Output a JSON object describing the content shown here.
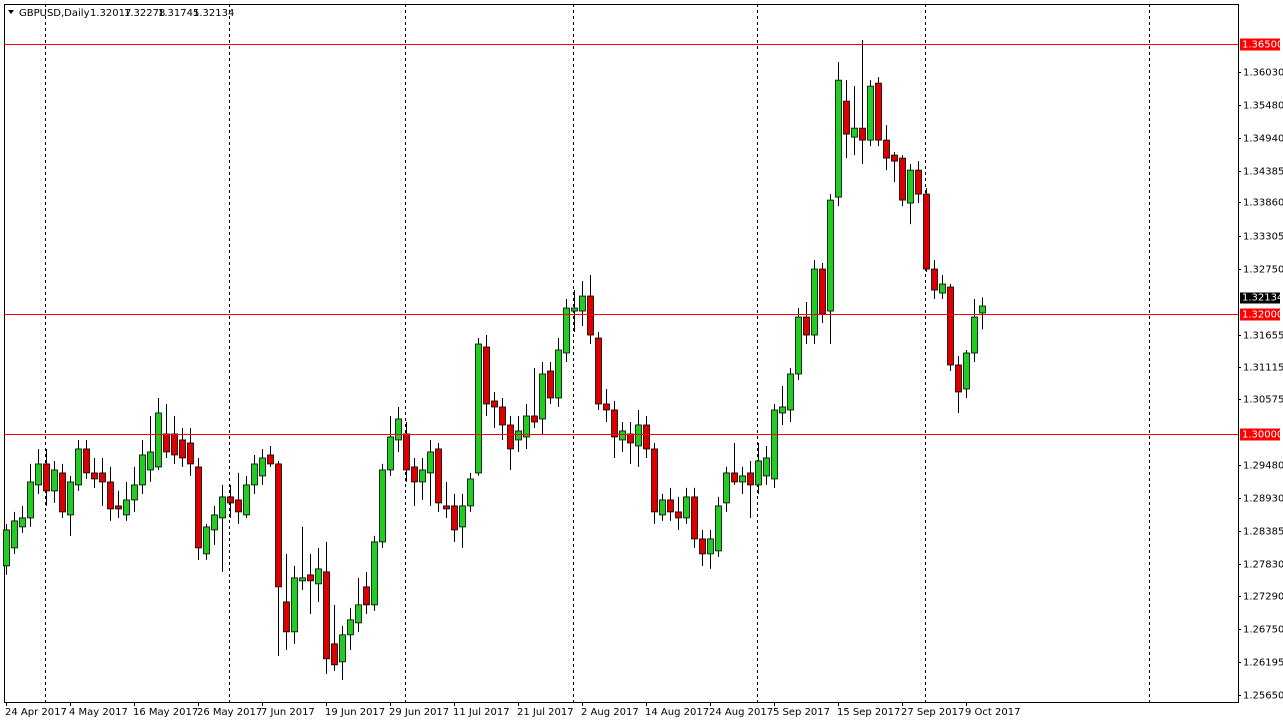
{
  "chart_data": {
    "type": "candlestick",
    "title": "GBPUSD,Daily",
    "categories": [
      "24 Apr 2017",
      null,
      null,
      null,
      null,
      null,
      null,
      null,
      "4 May 2017",
      null,
      null,
      null,
      null,
      null,
      null,
      null,
      "16 May 2017",
      null,
      null,
      null,
      null,
      null,
      null,
      null,
      "26 May 2017",
      null,
      null,
      null,
      null,
      null,
      null,
      null,
      "7 Jun 2017",
      null,
      null,
      null,
      null,
      null,
      null,
      null,
      "19 Jun 2017",
      null,
      null,
      null,
      null,
      null,
      null,
      null,
      "29 Jun 2017",
      null,
      null,
      null,
      null,
      null,
      null,
      null,
      "11 Jul 2017",
      null,
      null,
      null,
      null,
      null,
      null,
      null,
      "21 Jul 2017",
      null,
      null,
      null,
      null,
      null,
      null,
      null,
      "2 Aug 2017",
      null,
      null,
      null,
      null,
      null,
      null,
      null,
      "14 Aug 2017",
      null,
      null,
      null,
      null,
      null,
      null,
      null,
      "24 Aug 2017",
      null,
      null,
      null,
      null,
      null,
      null,
      null,
      "5 Sep 2017",
      null,
      null,
      null,
      null,
      null,
      null,
      null,
      "15 Sep 2017",
      null,
      null,
      null,
      null,
      null,
      null,
      null,
      "27 Sep 2017",
      null,
      null,
      null,
      null,
      null,
      null,
      null,
      "9 Oct 2017",
      null,
      null
    ],
    "open": [
      1.278,
      1.281,
      1.2845,
      1.286,
      1.2915,
      1.295,
      1.2905,
      1.2935,
      1.2865,
      1.2915,
      1.2975,
      1.2935,
      1.2935,
      1.292,
      1.288,
      1.2865,
      1.289,
      1.2915,
      1.294,
      1.2945,
      1.3,
      1.3,
      1.299,
      1.2985,
      1.2945,
      1.28,
      1.284,
      1.286,
      1.2895,
      1.289,
      1.2865,
      1.2915,
      1.293,
      1.2965,
      1.295,
      1.272,
      1.267,
      1.2755,
      1.2765,
      1.275,
      1.277,
      1.265,
      1.262,
      1.2665,
      1.2685,
      1.2745,
      1.2715,
      1.282,
      1.294,
      1.299,
      1.3,
      1.2945,
      1.292,
      1.2935,
      1.2975,
      1.288,
      1.288,
      1.2845,
      1.288,
      1.2935,
      1.3145,
      1.3055,
      1.3045,
      1.3015,
      1.299,
      1.2995,
      1.303,
      1.3025,
      1.3105,
      1.306,
      1.3135,
      1.3205,
      1.3205,
      1.323,
      1.316,
      1.305,
      1.304,
      1.299,
      1.3,
      1.298,
      1.3015,
      1.2975,
      1.2865,
      1.289,
      1.287,
      1.286,
      1.2895,
      1.2825,
      1.28,
      1.2805,
      1.2885,
      1.2935,
      1.292,
      1.2935,
      1.2915,
      1.293,
      1.2925,
      1.3035,
      1.304,
      1.31,
      1.3195,
      1.3165,
      1.3275,
      1.3205,
      1.3395,
      1.3555,
      1.3495,
      1.351,
      1.349,
      1.3585,
      1.349,
      1.3465,
      1.346,
      1.3385,
      1.344,
      1.34,
      1.3275,
      1.3235,
      1.3245,
      1.3115,
      1.3075,
      1.3135,
      1.32017
    ],
    "high": [
      1.285,
      1.287,
      1.288,
      1.295,
      1.2975,
      1.2975,
      1.2955,
      1.295,
      1.293,
      1.299,
      1.299,
      1.296,
      1.296,
      1.2945,
      1.2905,
      1.292,
      1.2945,
      1.299,
      1.303,
      1.306,
      1.305,
      1.303,
      1.301,
      1.301,
      1.296,
      1.285,
      1.288,
      1.2915,
      1.2915,
      1.2935,
      1.293,
      1.2965,
      1.2975,
      1.298,
      1.2955,
      1.28,
      1.278,
      1.2845,
      1.28,
      1.281,
      1.282,
      1.2715,
      1.268,
      1.271,
      1.276,
      1.277,
      1.283,
      1.295,
      1.303,
      1.3045,
      1.302,
      1.296,
      1.296,
      1.299,
      1.2985,
      1.292,
      1.29,
      1.29,
      1.2935,
      1.316,
      1.3165,
      1.307,
      1.306,
      1.303,
      1.303,
      1.305,
      1.311,
      1.312,
      1.312,
      1.316,
      1.3225,
      1.324,
      1.3255,
      1.3265,
      1.317,
      1.3075,
      1.3055,
      1.302,
      1.302,
      1.304,
      1.303,
      1.2985,
      1.29,
      1.291,
      1.2895,
      1.291,
      1.291,
      1.284,
      1.284,
      1.2895,
      1.2945,
      1.2985,
      1.2945,
      1.2955,
      1.2985,
      1.298,
      1.305,
      1.308,
      1.311,
      1.321,
      1.322,
      1.329,
      1.3285,
      1.34,
      1.362,
      1.359,
      1.358,
      1.3657,
      1.359,
      1.3595,
      1.3515,
      1.347,
      1.3465,
      1.345,
      1.3455,
      1.341,
      1.329,
      1.3265,
      1.325,
      1.313,
      1.314,
      1.3225,
      1.32278
    ],
    "low": [
      1.2765,
      1.28,
      1.2835,
      1.2845,
      1.29,
      1.288,
      1.2885,
      1.286,
      1.283,
      1.2905,
      1.2925,
      1.291,
      1.288,
      1.2855,
      1.286,
      1.2855,
      1.287,
      1.29,
      1.292,
      1.294,
      1.296,
      1.295,
      1.2945,
      1.293,
      1.279,
      1.279,
      1.2815,
      1.277,
      1.286,
      1.285,
      1.286,
      1.29,
      1.2915,
      1.2945,
      1.263,
      1.264,
      1.265,
      1.274,
      1.27,
      1.272,
      1.26,
      1.2605,
      1.259,
      1.264,
      1.267,
      1.27,
      1.2705,
      1.281,
      1.293,
      1.297,
      1.292,
      1.288,
      1.289,
      1.288,
      1.287,
      1.286,
      1.282,
      1.281,
      1.287,
      1.293,
      1.303,
      1.301,
      1.299,
      1.294,
      1.297,
      1.2975,
      1.301,
      1.3,
      1.305,
      1.3045,
      1.312,
      1.317,
      1.318,
      1.315,
      1.304,
      1.302,
      1.296,
      1.297,
      1.295,
      1.2945,
      1.296,
      1.285,
      1.2855,
      1.2855,
      1.284,
      1.285,
      1.281,
      1.278,
      1.2775,
      1.2795,
      1.287,
      1.2915,
      1.29,
      1.286,
      1.29,
      1.2915,
      1.291,
      1.3015,
      1.302,
      1.309,
      1.315,
      1.315,
      1.3185,
      1.315,
      1.338,
      1.346,
      1.3465,
      1.345,
      1.348,
      1.348,
      1.344,
      1.342,
      1.338,
      1.335,
      1.3385,
      1.327,
      1.3225,
      1.3225,
      1.3105,
      1.3035,
      1.306,
      1.312,
      1.31745
    ],
    "close": [
      1.284,
      1.2855,
      1.286,
      1.292,
      1.295,
      1.2905,
      1.294,
      1.287,
      1.292,
      1.2975,
      1.2935,
      1.2925,
      1.292,
      1.2875,
      1.2875,
      1.289,
      1.2915,
      1.2965,
      1.297,
      1.3035,
      1.297,
      1.2965,
      1.296,
      1.295,
      1.281,
      1.2845,
      1.2865,
      1.2895,
      1.2885,
      1.287,
      1.2915,
      1.295,
      1.296,
      1.295,
      1.2745,
      1.267,
      1.276,
      1.276,
      1.2755,
      1.2775,
      1.2625,
      1.2615,
      1.2665,
      1.269,
      1.2715,
      1.2715,
      1.282,
      1.294,
      1.2995,
      1.3025,
      1.294,
      1.292,
      1.294,
      1.297,
      1.2885,
      1.2875,
      1.284,
      1.288,
      1.2925,
      1.315,
      1.305,
      1.3045,
      1.3015,
      1.2975,
      1.3005,
      1.303,
      1.302,
      1.31,
      1.306,
      1.314,
      1.321,
      1.321,
      1.323,
      1.3165,
      1.305,
      1.304,
      1.2995,
      1.3005,
      1.2985,
      1.3015,
      1.2975,
      1.287,
      1.289,
      1.287,
      1.286,
      1.2895,
      1.2825,
      1.28,
      1.2825,
      1.288,
      1.2935,
      1.292,
      1.293,
      1.2915,
      1.2955,
      1.296,
      1.304,
      1.3045,
      1.31,
      1.3195,
      1.3165,
      1.3275,
      1.32,
      1.339,
      1.359,
      1.35,
      1.351,
      1.349,
      1.358,
      1.349,
      1.346,
      1.3455,
      1.339,
      1.344,
      1.34,
      1.3275,
      1.324,
      1.325,
      1.3115,
      1.307,
      1.3135,
      1.3195,
      1.32134
    ],
    "up_color": "#22cc22",
    "down_color": "#dd0000",
    "line_color": "#ff0000",
    "ylim": [
      1.2553,
      1.3717
    ],
    "yticks": [
      {
        "value": 1.3603,
        "label": "1.36030"
      },
      {
        "value": 1.3548,
        "label": "1.35480"
      },
      {
        "value": 1.3494,
        "label": "1.34940"
      },
      1.34385,
      {
        "value": 1.3386,
        "label": "1.33860"
      },
      1.33305,
      {
        "value": 1.3275,
        "label": "1.32750"
      },
      1.31655,
      1.31115,
      1.30575,
      {
        "value": 1.2948,
        "label": "1.29480"
      },
      {
        "value": 1.2893,
        "label": "1.28930"
      },
      1.28385,
      {
        "value": 1.2783,
        "label": "1.27830"
      },
      {
        "value": 1.2729,
        "label": "1.27290"
      },
      {
        "value": 1.2675,
        "label": "1.26750"
      },
      1.26195,
      {
        "value": 1.2565,
        "label": "1.25650"
      }
    ],
    "hlines": [
      {
        "value": 1.365,
        "label": "1.36500"
      },
      {
        "value": 1.32,
        "label": "1.32000"
      },
      {
        "value": 1.3,
        "label": "1.30000"
      }
    ]
  }
}
